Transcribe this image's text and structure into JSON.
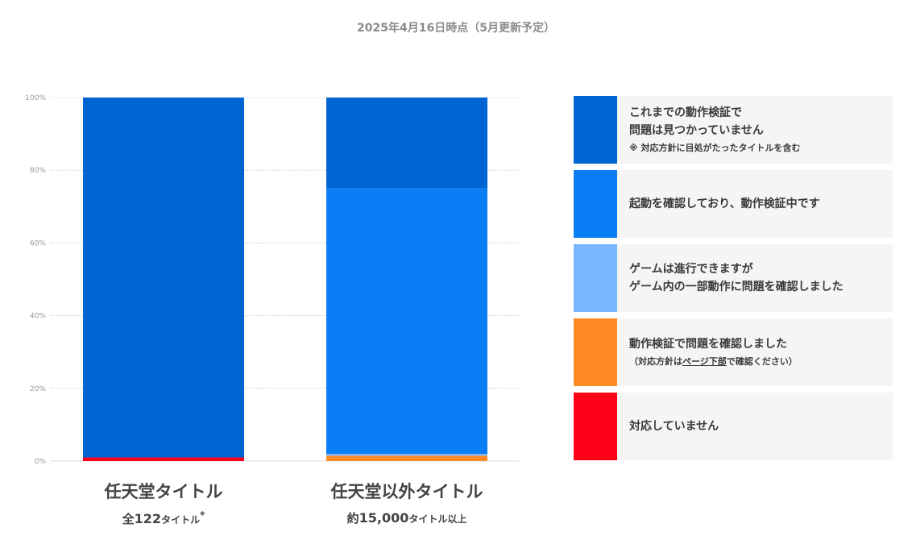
{
  "header": {
    "subtitle": "2025年4月16日時点（5月更新予定）"
  },
  "colors": {
    "verified": "#0064d2",
    "confirming": "#0a7ff5",
    "partial": "#78b7ff",
    "issue": "#ff8a24",
    "unsupported": "#ff0019"
  },
  "chart_data": {
    "type": "bar",
    "stacked": true,
    "categories": [
      "任天堂タイトル",
      "任天堂以外タイトル"
    ],
    "category_notes": [
      {
        "prefix": "全",
        "number": "122",
        "suffix": "タイトル",
        "mark": "*"
      },
      {
        "prefix": "約",
        "number": "15,000",
        "suffix": "タイトル以上",
        "mark": ""
      }
    ],
    "series": [
      {
        "key": "unsupported",
        "values": [
          1,
          0
        ]
      },
      {
        "key": "issue",
        "values": [
          0,
          1.5
        ]
      },
      {
        "key": "partial",
        "values": [
          0,
          0.5
        ]
      },
      {
        "key": "confirming",
        "values": [
          0,
          73
        ]
      },
      {
        "key": "verified",
        "values": [
          99,
          25
        ]
      }
    ],
    "yticks": [
      "0%",
      "20%",
      "40%",
      "60%",
      "80%",
      "100%"
    ],
    "ylim": [
      0,
      100
    ],
    "grid": true,
    "legend_position": "right"
  },
  "legend": {
    "items": [
      {
        "key": "verified",
        "lines": [
          "これまでの動作検証で",
          "問題は見つかっていません"
        ],
        "note": "※ 対応方針に目処がたったタイトルを含む"
      },
      {
        "key": "confirming",
        "lines": [
          "起動を確認しており、動作検証中です"
        ],
        "note": ""
      },
      {
        "key": "partial",
        "lines": [
          "ゲームは進行できますが",
          "ゲーム内の一部動作に問題を確認しました"
        ],
        "note": ""
      },
      {
        "key": "issue",
        "lines": [
          "動作検証で問題を確認しました"
        ],
        "note_parts": [
          "（対応方針は",
          "ページ下部",
          "で確認ください）"
        ]
      },
      {
        "key": "unsupported",
        "lines": [
          "対応していません"
        ],
        "note": ""
      }
    ]
  }
}
